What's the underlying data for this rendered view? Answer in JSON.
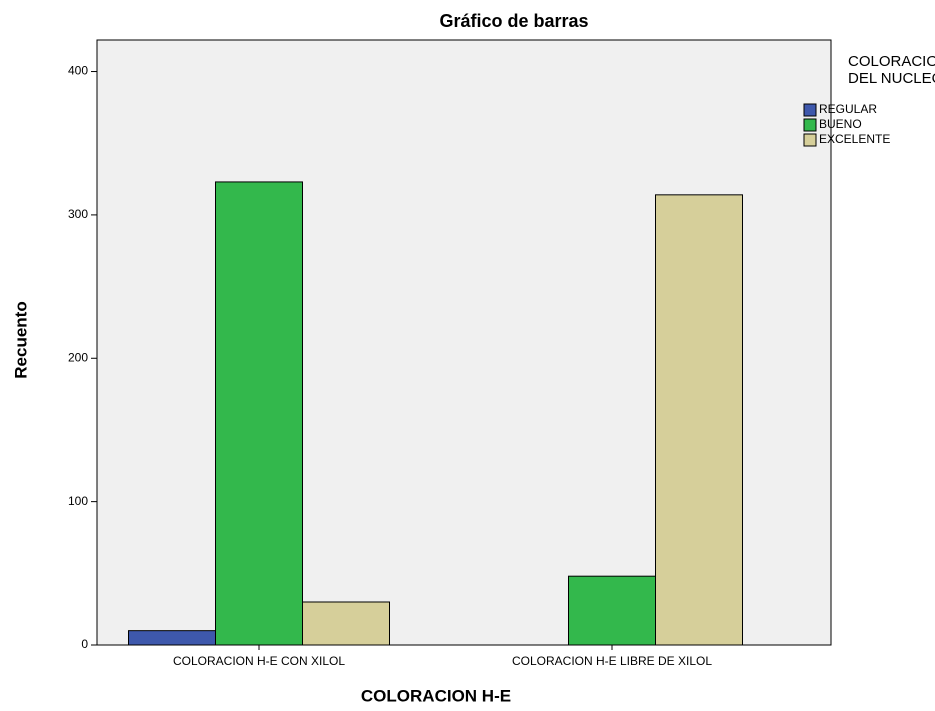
{
  "chart_data": {
    "type": "bar",
    "title": "Gráfico de barras",
    "x_label": "COLORACION H-E",
    "y_label": "Recuento",
    "legend_title": [
      "COLORACION",
      "DEL NUCLEO"
    ],
    "categories": [
      "COLORACION H-E CON XILOL",
      "COLORACION H-E LIBRE DE XILOL"
    ],
    "series": [
      {
        "name": "REGULAR",
        "color": "#3e58ac",
        "values": [
          10,
          0
        ]
      },
      {
        "name": "BUENO",
        "color": "#33b84c",
        "values": [
          323,
          48
        ]
      },
      {
        "name": "EXCELENTE",
        "color": "#d6cf9a",
        "values": [
          30,
          314
        ]
      }
    ],
    "ylim": [
      0,
      422
    ],
    "yticks": [
      0,
      100,
      200,
      300,
      400
    ],
    "grid": false,
    "legend": "right"
  }
}
